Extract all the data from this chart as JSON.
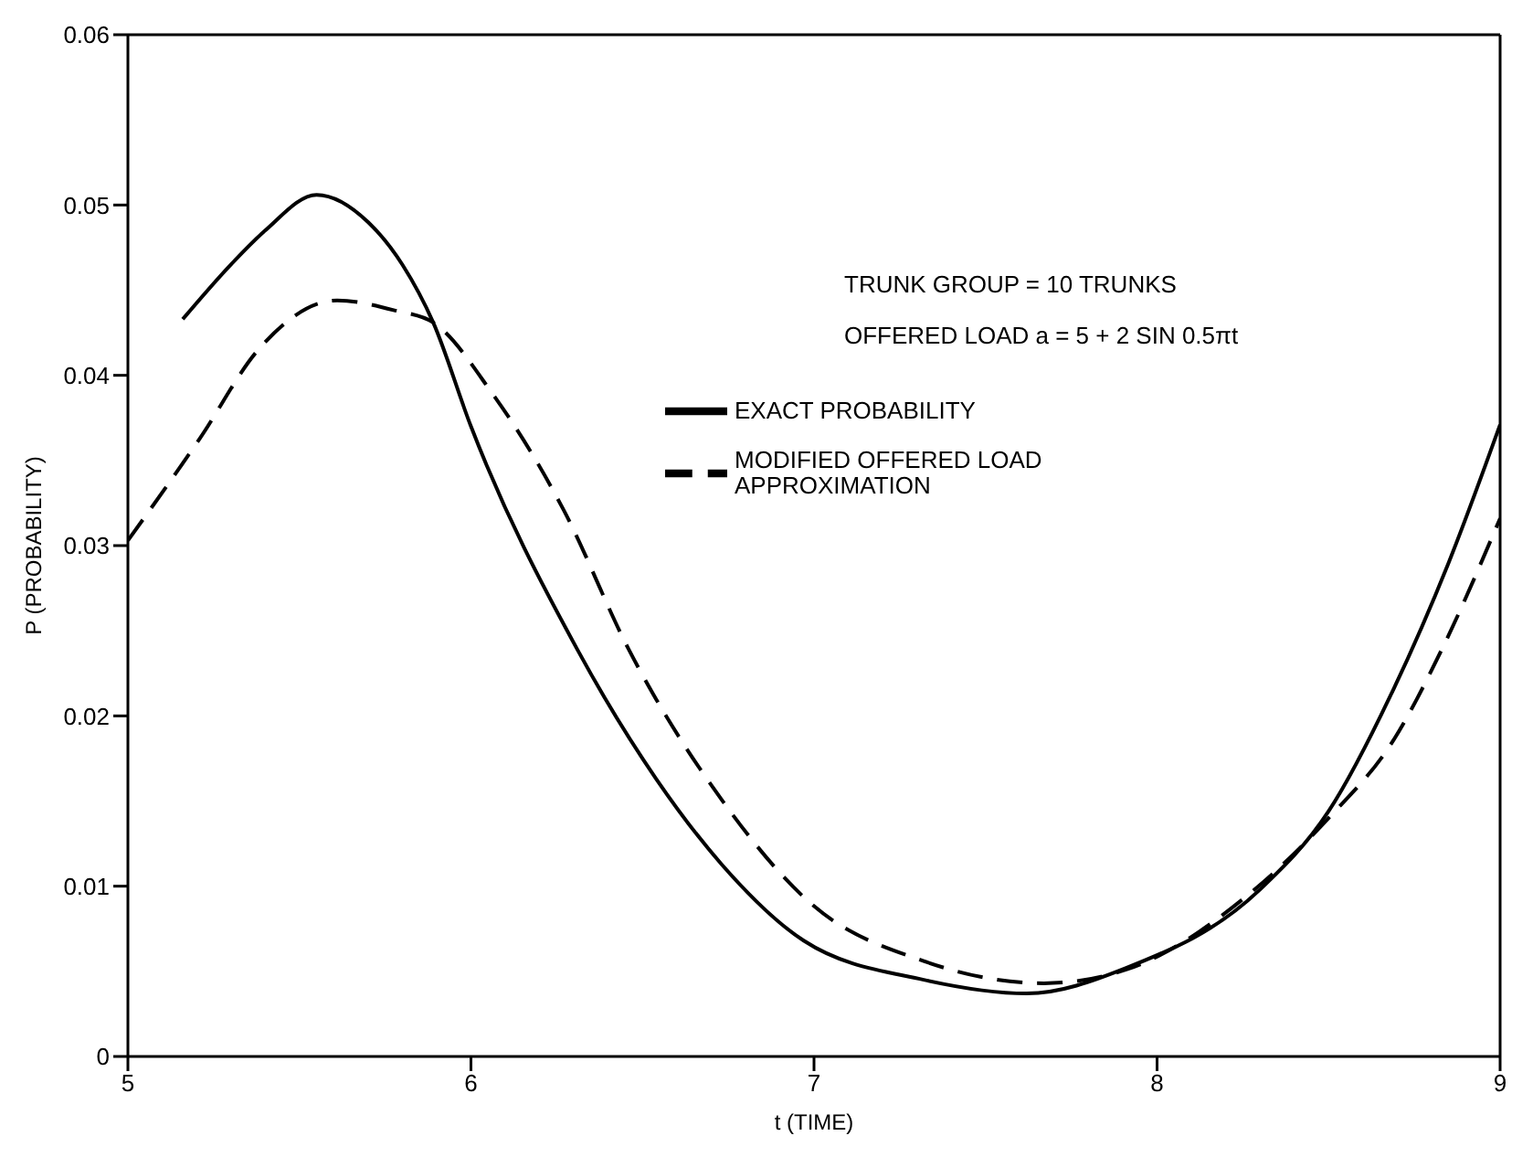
{
  "chart_data": {
    "type": "line",
    "xlabel": "t (TIME)",
    "ylabel": "P (PROBABILITY)",
    "annotations": [
      "TRUNK GROUP = 10 TRUNKS",
      "OFFERED LOAD a = 5 + 2 SIN 0.5πt"
    ],
    "xlim": [
      5,
      9
    ],
    "xticks": [
      5,
      6,
      7,
      8,
      9
    ],
    "ylim": [
      0,
      0.06
    ],
    "yticks": [
      0,
      0.01,
      0.02,
      0.03,
      0.04,
      0.05,
      0.06
    ],
    "legend": "top right",
    "series": [
      {
        "name": "EXACT PROBABILITY",
        "color": "#000000",
        "line_style": "solid",
        "x": [
          5.16,
          5.3,
          5.4,
          5.55,
          5.7,
          5.8,
          5.89,
          6.0,
          6.31,
          6.54,
          6.73,
          6.97,
          7.32,
          7.62,
          7.91,
          8.3,
          8.5,
          8.69,
          8.85,
          9.0
        ],
        "values": [
          0.0433,
          0.0465,
          0.0485,
          0.0506,
          0.049,
          0.0465,
          0.0431,
          0.037,
          0.0239,
          0.0163,
          0.0113,
          0.0068,
          0.0045,
          0.0037,
          0.0052,
          0.0098,
          0.0144,
          0.0216,
          0.029,
          0.0371
        ]
      },
      {
        "name": "MODIFIED OFFERED LOAD APPROXIMATION",
        "color": "#000000",
        "line_style": "dashed",
        "x": [
          5.0,
          5.21,
          5.38,
          5.61,
          5.78,
          5.89,
          6.06,
          6.27,
          6.46,
          6.73,
          6.99,
          7.32,
          7.67,
          7.91,
          8.26,
          8.5,
          8.69,
          8.83,
          9.0
        ],
        "values": [
          0.0303,
          0.0363,
          0.0415,
          0.0444,
          0.0438,
          0.0431,
          0.039,
          0.0321,
          0.0239,
          0.0151,
          0.009,
          0.0056,
          0.0043,
          0.0051,
          0.0094,
          0.014,
          0.0186,
          0.0239,
          0.0316
        ]
      }
    ]
  }
}
